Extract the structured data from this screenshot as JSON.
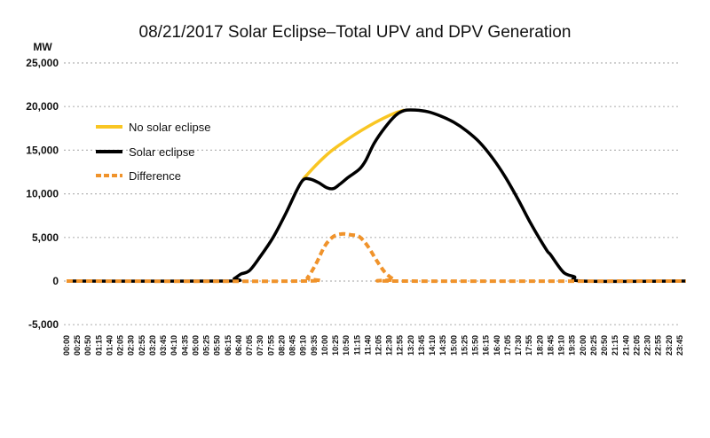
{
  "chart_data": {
    "type": "line",
    "title": "08/21/2017 Solar Eclipse–Total UPV and DPV Generation",
    "ylabel": "MW",
    "xlabel": "",
    "ylim": [
      -5000,
      25000
    ],
    "yticks": [
      -5000,
      0,
      5000,
      10000,
      15000,
      20000,
      25000
    ],
    "ytick_labels": [
      "-5,000",
      "0",
      "5,000",
      "10,000",
      "15,000",
      "20,000",
      "25,000"
    ],
    "xtick_labels": [
      "00:00",
      "00:25",
      "00:50",
      "01:15",
      "01:40",
      "02:05",
      "02:30",
      "02:55",
      "03:20",
      "03:45",
      "04:10",
      "04:35",
      "05:00",
      "05:25",
      "05:50",
      "06:15",
      "06:40",
      "07:05",
      "07:30",
      "07:55",
      "08:20",
      "08:45",
      "09:10",
      "09:35",
      "10:00",
      "10:25",
      "10:50",
      "11:15",
      "11:40",
      "12:05",
      "12:30",
      "12:55",
      "13:20",
      "13:45",
      "14:10",
      "14:35",
      "15:00",
      "15:25",
      "15:50",
      "16:15",
      "16:40",
      "17:05",
      "17:30",
      "17:55",
      "18:20",
      "18:45",
      "19:10",
      "19:35",
      "20:00",
      "20:25",
      "20:50",
      "21:15",
      "21:40",
      "22:05",
      "22:30",
      "22:55",
      "23:20",
      "23:45"
    ],
    "grid": true,
    "legend_placement": "top-left",
    "series": [
      {
        "name": "No solar eclipse",
        "color": "#f9c623",
        "style": "solid",
        "points": [
          [
            "09:10",
            11700
          ],
          [
            "09:40",
            13300
          ],
          [
            "10:10",
            14700
          ],
          [
            "10:40",
            15800
          ],
          [
            "11:10",
            16800
          ],
          [
            "11:40",
            17700
          ],
          [
            "12:10",
            18500
          ],
          [
            "12:40",
            19200
          ],
          [
            "13:05",
            19600
          ]
        ]
      },
      {
        "name": "Solar eclipse",
        "color": "#000000",
        "style": "solid",
        "points": [
          [
            "00:00",
            0
          ],
          [
            "06:10",
            0
          ],
          [
            "06:30",
            300
          ],
          [
            "06:45",
            800
          ],
          [
            "07:05",
            1200
          ],
          [
            "07:30",
            2800
          ],
          [
            "08:00",
            5000
          ],
          [
            "08:30",
            7800
          ],
          [
            "08:55",
            10400
          ],
          [
            "09:10",
            11600
          ],
          [
            "09:25",
            11700
          ],
          [
            "09:45",
            11300
          ],
          [
            "10:05",
            10700
          ],
          [
            "10:20",
            10600
          ],
          [
            "10:35",
            11100
          ],
          [
            "10:55",
            11900
          ],
          [
            "11:20",
            12800
          ],
          [
            "11:35",
            13800
          ],
          [
            "11:55",
            15800
          ],
          [
            "12:20",
            17600
          ],
          [
            "12:45",
            19000
          ],
          [
            "13:05",
            19550
          ],
          [
            "13:30",
            19600
          ],
          [
            "14:00",
            19400
          ],
          [
            "14:30",
            18900
          ],
          [
            "15:00",
            18200
          ],
          [
            "15:30",
            17200
          ],
          [
            "16:00",
            15900
          ],
          [
            "16:30",
            14100
          ],
          [
            "17:00",
            11900
          ],
          [
            "17:30",
            9300
          ],
          [
            "18:00",
            6500
          ],
          [
            "18:35",
            3600
          ],
          [
            "18:45",
            3000
          ],
          [
            "19:15",
            1000
          ],
          [
            "19:40",
            500
          ],
          [
            "20:00",
            0
          ],
          [
            "23:59",
            0
          ]
        ]
      },
      {
        "name": "Difference",
        "color": "#f0932b",
        "style": "dashed",
        "points": [
          [
            "00:00",
            0
          ],
          [
            "09:05",
            0
          ],
          [
            "09:20",
            400
          ],
          [
            "09:40",
            2000
          ],
          [
            "10:00",
            4000
          ],
          [
            "10:20",
            5100
          ],
          [
            "10:40",
            5400
          ],
          [
            "11:00",
            5300
          ],
          [
            "11:20",
            5100
          ],
          [
            "11:40",
            4000
          ],
          [
            "12:00",
            2400
          ],
          [
            "12:20",
            1000
          ],
          [
            "12:40",
            200
          ],
          [
            "12:55",
            0
          ],
          [
            "23:59",
            0
          ]
        ]
      }
    ]
  }
}
